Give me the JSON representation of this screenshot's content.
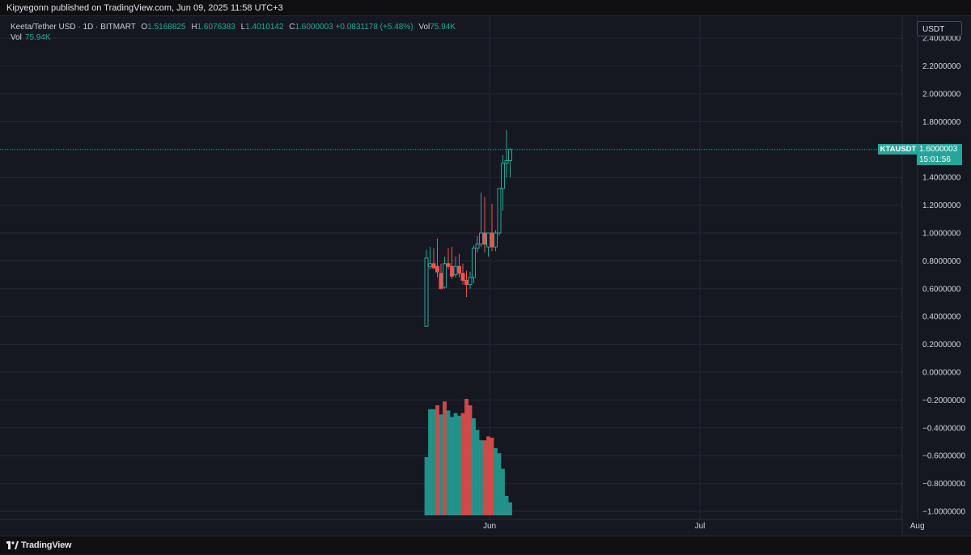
{
  "header": {
    "published_text": "Kipyegonn published on TradingView.com, Jun 09, 2025 11:58 UTC+3"
  },
  "legend": {
    "symbol": "Keeta/Tether USD · 1D · BITMART",
    "o_label": "O",
    "o_value": "1.5168825",
    "h_label": "H",
    "h_value": "1.6076383",
    "l_label": "L",
    "l_value": "1.4010142",
    "c_label": "C",
    "c_value": "1.6000003",
    "change": "+0.0831178 (+5.48%)",
    "vol_label": "Vol",
    "vol_value": "75.94K",
    "vol_row_label": "Vol",
    "vol_row_value": "75.94K"
  },
  "currency_button": "USDT",
  "price_tag": {
    "symbol": "KTAUSDT",
    "price": "1.6000003",
    "countdown": "15:01:56",
    "value": 1.6000003
  },
  "footer": {
    "brand": "TradingView",
    "logo_icon": "tradingview-logo-icon"
  },
  "colors": {
    "up": "#26a69a",
    "down": "#ef5350",
    "vol_up": "#26a69a",
    "vol_down": "#ef5350",
    "background": "#161821",
    "grid": "#242733"
  },
  "chart_data": {
    "type": "candlestick",
    "title": "",
    "y_axis_ticks": [
      "2.4000000",
      "2.2000000",
      "2.0000000",
      "1.8000000",
      "1.6000000",
      "1.4000000",
      "1.2000000",
      "1.0000000",
      "0.8000000",
      "0.6000000",
      "0.4000000",
      "0.2000000",
      "0.0000000",
      "−0.2000000",
      "−0.4000000",
      "−0.6000000",
      "−0.8000000",
      "−1.0000000"
    ],
    "y_range": [
      -1.0,
      2.4
    ],
    "x_axis_ticks": [
      "Jun",
      "Jul",
      "Aug"
    ],
    "x_tick_day_index": [
      9,
      39,
      70
    ],
    "grid": true,
    "candles": [
      {
        "d": 0,
        "o": 0.82,
        "h": 0.88,
        "l": 0.33,
        "c": 0.33,
        "up": true
      },
      {
        "d": 1,
        "o": 0.76,
        "h": 0.9,
        "l": 0.74,
        "c": 0.78,
        "up": true
      },
      {
        "d": 2,
        "o": 0.78,
        "h": 0.89,
        "l": 0.74,
        "c": 0.75,
        "up": false
      },
      {
        "d": 3,
        "o": 0.76,
        "h": 0.96,
        "l": 0.68,
        "c": 0.72,
        "up": false
      },
      {
        "d": 4,
        "o": 0.71,
        "h": 0.78,
        "l": 0.6,
        "c": 0.6,
        "up": false
      },
      {
        "d": 5,
        "o": 0.61,
        "h": 0.83,
        "l": 0.6,
        "c": 0.78,
        "up": true
      },
      {
        "d": 6,
        "o": 0.78,
        "h": 0.89,
        "l": 0.74,
        "c": 0.76,
        "up": false
      },
      {
        "d": 7,
        "o": 0.76,
        "h": 0.9,
        "l": 0.67,
        "c": 0.69,
        "up": false
      },
      {
        "d": 8,
        "o": 0.7,
        "h": 0.83,
        "l": 0.68,
        "c": 0.76,
        "up": true
      },
      {
        "d": 9,
        "o": 0.76,
        "h": 0.85,
        "l": 0.68,
        "c": 0.71,
        "up": false
      },
      {
        "d": 10,
        "o": 0.71,
        "h": 0.78,
        "l": 0.63,
        "c": 0.66,
        "up": false
      },
      {
        "d": 11,
        "o": 0.66,
        "h": 0.73,
        "l": 0.54,
        "c": 0.63,
        "up": false
      },
      {
        "d": 12,
        "o": 0.63,
        "h": 0.72,
        "l": 0.6,
        "c": 0.68,
        "up": true
      },
      {
        "d": 13,
        "o": 0.68,
        "h": 0.91,
        "l": 0.64,
        "c": 0.89,
        "up": true
      },
      {
        "d": 14,
        "o": 0.89,
        "h": 0.98,
        "l": 0.86,
        "c": 0.92,
        "up": true
      },
      {
        "d": 15,
        "o": 0.92,
        "h": 1.29,
        "l": 0.9,
        "c": 1.0,
        "up": true
      },
      {
        "d": 16,
        "o": 1.0,
        "h": 1.26,
        "l": 0.86,
        "c": 0.92,
        "up": false
      },
      {
        "d": 17,
        "o": 0.9,
        "h": 1.0,
        "l": 0.83,
        "c": 1.0,
        "up": true
      },
      {
        "d": 18,
        "o": 1.0,
        "h": 1.21,
        "l": 0.87,
        "c": 0.9,
        "up": false
      },
      {
        "d": 19,
        "o": 0.9,
        "h": 1.02,
        "l": 0.87,
        "c": 1.0,
        "up": true
      },
      {
        "d": 20,
        "o": 1.0,
        "h": 1.3,
        "l": 0.98,
        "c": 1.32,
        "up": true
      },
      {
        "d": 21,
        "o": 1.32,
        "h": 1.56,
        "l": 1.16,
        "c": 1.5,
        "up": true
      },
      {
        "d": 22,
        "o": 1.5,
        "h": 1.74,
        "l": 1.4,
        "c": 1.52,
        "up": true
      },
      {
        "d": 23,
        "o": 1.52,
        "h": 1.61,
        "l": 1.4,
        "c": 1.6,
        "up": true
      }
    ],
    "volume_series": {
      "name": "Vol",
      "values": [
        0.45,
        0.82,
        0.82,
        0.85,
        0.78,
        0.88,
        0.81,
        0.76,
        0.79,
        0.77,
        0.79,
        0.9,
        0.85,
        0.75,
        0.66,
        0.58,
        0.58,
        0.61,
        0.6,
        0.52,
        0.48,
        0.36,
        0.15,
        0.1
      ],
      "up": [
        true,
        true,
        true,
        false,
        true,
        false,
        true,
        true,
        true,
        true,
        false,
        false,
        false,
        true,
        true,
        true,
        false,
        false,
        false,
        true,
        true,
        true,
        true,
        true
      ]
    }
  }
}
